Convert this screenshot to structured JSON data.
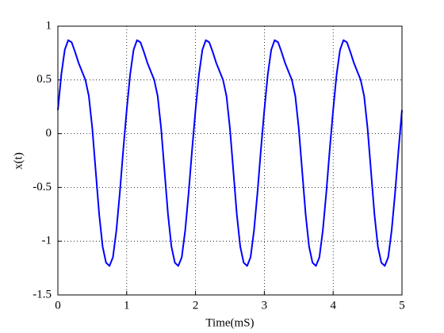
{
  "chart_data": {
    "type": "line",
    "xlabel": "Time(mS)",
    "ylabel": "x(t)",
    "x": [
      0,
      0.05,
      0.1,
      0.15,
      0.2,
      0.25,
      0.3,
      0.35,
      0.4,
      0.45,
      0.5,
      0.55,
      0.6,
      0.65,
      0.7,
      0.75,
      0.8,
      0.85,
      0.9,
      0.95,
      1,
      1.05,
      1.1,
      1.15,
      1.2,
      1.25,
      1.3,
      1.35,
      1.4,
      1.45,
      1.5,
      1.55,
      1.6,
      1.65,
      1.7,
      1.75,
      1.8,
      1.85,
      1.9,
      1.95,
      2,
      2.05,
      2.1,
      2.15,
      2.2,
      2.25,
      2.3,
      2.35,
      2.4,
      2.45,
      2.5,
      2.55,
      2.6,
      2.65,
      2.7,
      2.75,
      2.8,
      2.85,
      2.9,
      2.95,
      3,
      3.05,
      3.1,
      3.15,
      3.2,
      3.25,
      3.3,
      3.35,
      3.4,
      3.45,
      3.5,
      3.55,
      3.6,
      3.65,
      3.7,
      3.75,
      3.8,
      3.85,
      3.9,
      3.95,
      4,
      4.05,
      4.1,
      4.15,
      4.2,
      4.25,
      4.3,
      4.35,
      4.4,
      4.45,
      4.5,
      4.55,
      4.6,
      4.65,
      4.7,
      4.75,
      4.8,
      4.85,
      4.9,
      4.95,
      5
    ],
    "values": [
      0.22,
      0.55,
      0.78,
      0.87,
      0.85,
      0.76,
      0.66,
      0.58,
      0.5,
      0.35,
      0.05,
      -0.35,
      -0.75,
      -1.05,
      -1.2,
      -1.23,
      -1.15,
      -0.9,
      -0.55,
      -0.15,
      0.22,
      0.55,
      0.78,
      0.87,
      0.85,
      0.76,
      0.66,
      0.58,
      0.5,
      0.35,
      0.05,
      -0.35,
      -0.75,
      -1.05,
      -1.2,
      -1.23,
      -1.15,
      -0.9,
      -0.55,
      -0.15,
      0.22,
      0.55,
      0.78,
      0.87,
      0.85,
      0.76,
      0.66,
      0.58,
      0.5,
      0.35,
      0.05,
      -0.35,
      -0.75,
      -1.05,
      -1.2,
      -1.23,
      -1.15,
      -0.9,
      -0.55,
      -0.15,
      0.22,
      0.55,
      0.78,
      0.87,
      0.85,
      0.76,
      0.66,
      0.58,
      0.5,
      0.35,
      0.05,
      -0.35,
      -0.75,
      -1.05,
      -1.2,
      -1.23,
      -1.15,
      -0.9,
      -0.55,
      -0.15,
      0.22,
      0.55,
      0.78,
      0.87,
      0.85,
      0.76,
      0.66,
      0.58,
      0.5,
      0.35,
      0.05,
      -0.35,
      -0.75,
      -1.05,
      -1.2,
      -1.23,
      -1.15,
      -0.9,
      -0.55,
      -0.15,
      0.22
    ],
    "color": "#0000ff",
    "xlim": [
      0,
      5
    ],
    "xticks": [
      0,
      1,
      2,
      3,
      4,
      5
    ],
    "ylim": [
      -1.5,
      1
    ],
    "yticks": [
      -1.5,
      -1,
      -0.5,
      0,
      0.5,
      1
    ],
    "grid": true
  }
}
